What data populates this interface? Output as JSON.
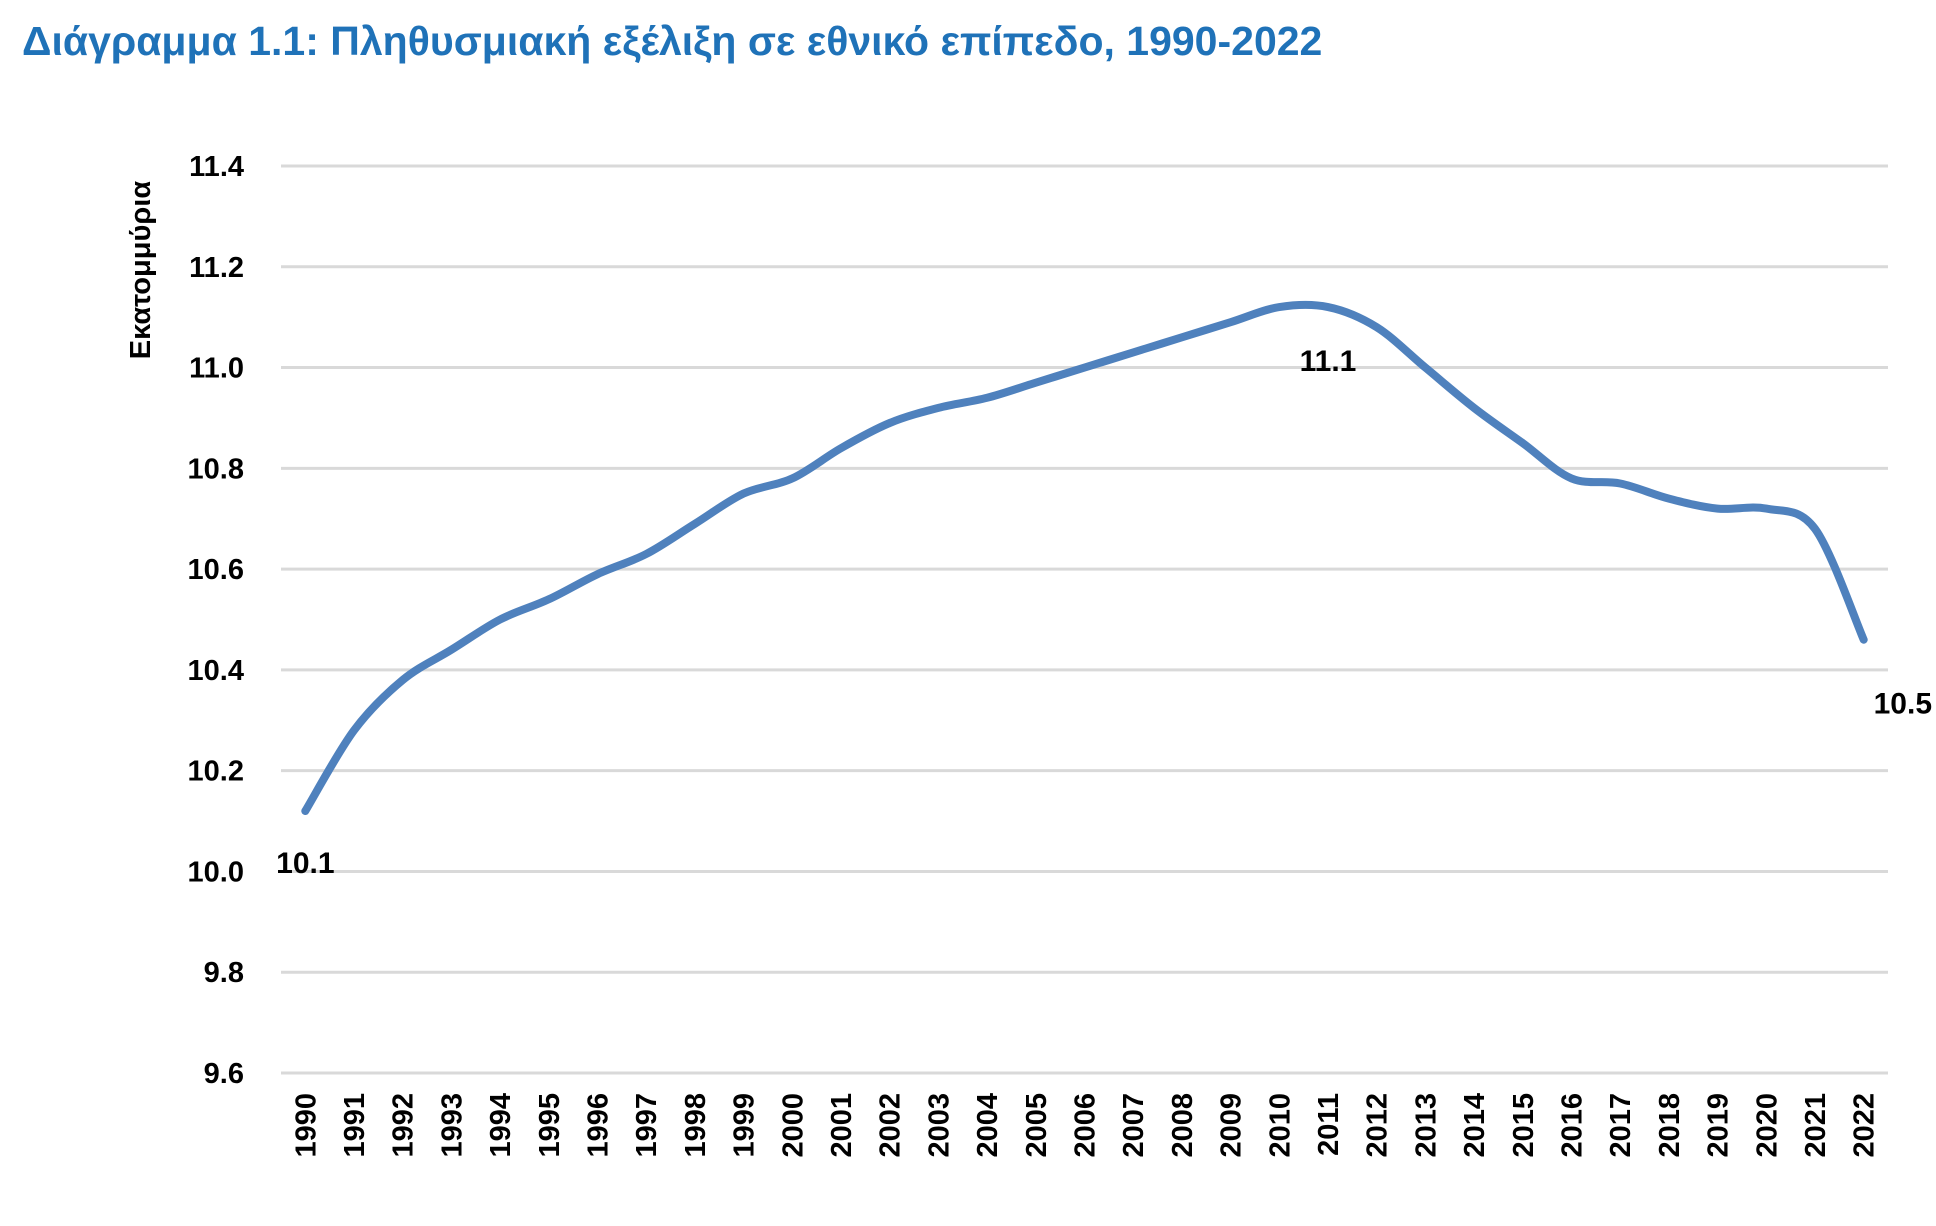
{
  "chart_data": {
    "type": "line",
    "title": "Διάγραμμα 1.1: Πληθυσμιακή εξέλιξη σε εθνικό επίπεδο, 1990-2022",
    "xlabel": "",
    "ylabel": "Εκατομμύρια",
    "ylim": [
      9.6,
      11.4
    ],
    "yticks": [
      "9.6",
      "9.8",
      "10.0",
      "10.2",
      "10.4",
      "10.6",
      "10.8",
      "11.0",
      "11.2",
      "11.4"
    ],
    "grid": true,
    "legend": "none",
    "line_color": "#4f81bd",
    "title_color": "#1f72b8",
    "categories": [
      "1990",
      "1991",
      "1992",
      "1993",
      "1994",
      "1995",
      "1996",
      "1997",
      "1998",
      "1999",
      "2000",
      "2001",
      "2002",
      "2003",
      "2004",
      "2005",
      "2006",
      "2007",
      "2008",
      "2009",
      "2010",
      "2011",
      "2012",
      "2013",
      "2014",
      "2015",
      "2016",
      "2017",
      "2018",
      "2019",
      "2020",
      "2021",
      "2022"
    ],
    "series": [
      {
        "values": [
          10.12,
          10.28,
          10.38,
          10.44,
          10.5,
          10.54,
          10.59,
          10.63,
          10.69,
          10.75,
          10.78,
          10.84,
          10.89,
          10.92,
          10.94,
          10.97,
          11.0,
          11.03,
          11.06,
          11.09,
          11.12,
          11.12,
          11.08,
          11.0,
          10.92,
          10.85,
          10.78,
          10.77,
          10.74,
          10.72,
          10.72,
          10.68,
          10.46
        ]
      }
    ],
    "annotations": [
      {
        "category": "1990",
        "text": "10.1"
      },
      {
        "category": "2011",
        "text": "11.1"
      },
      {
        "category": "2022",
        "text": "10.5"
      }
    ]
  }
}
